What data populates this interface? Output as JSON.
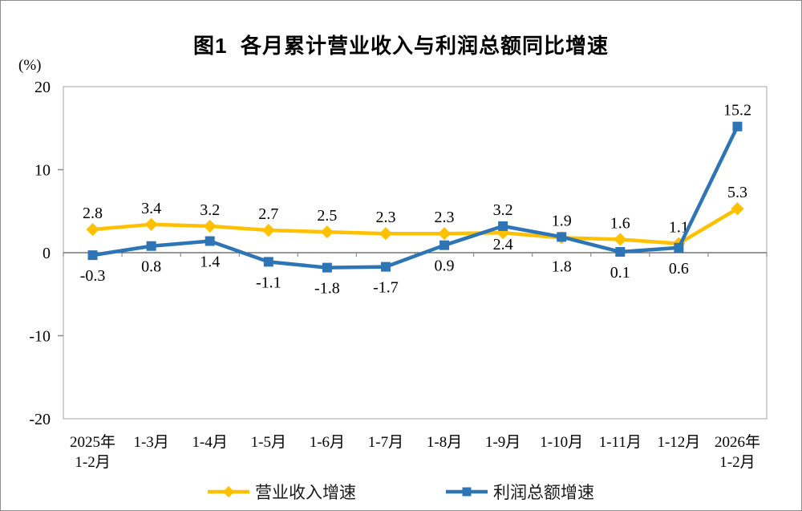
{
  "chart_data": {
    "type": "line",
    "title": "图1  各月累计营业收入与利润总额同比增速",
    "unit_label": "(%)",
    "categories": [
      "2025年\n1-2月",
      "1-3月",
      "1-4月",
      "1-5月",
      "1-6月",
      "1-7月",
      "1-8月",
      "1-9月",
      "1-10月",
      "1-11月",
      "1-12月",
      "2026年\n1-2月"
    ],
    "ylim": [
      -20,
      20
    ],
    "yticks": [
      20,
      10,
      0,
      -10,
      -20
    ],
    "grid": false,
    "legend_position": "bottom",
    "axis_color": "#a3a3a3",
    "zero_line_color": "#595959",
    "tick_color": "#8c8c8c",
    "text_color": "#000000",
    "series": [
      {
        "name": "营业收入增速",
        "color": "#FFC000",
        "marker": "diamond",
        "values": [
          2.8,
          3.4,
          3.2,
          2.7,
          2.5,
          2.3,
          2.3,
          2.4,
          1.8,
          1.6,
          1.1,
          5.3
        ],
        "label_positions": [
          "above",
          "above",
          "above",
          "above",
          "above",
          "above",
          "above",
          {
            "pos": "below",
            "dy": -11
          },
          {
            "pos": "below",
            "dy": 10
          },
          "above",
          "above",
          "above"
        ]
      },
      {
        "name": "利润总额增速",
        "color": "#2E75B6",
        "marker": "square",
        "values": [
          -0.3,
          0.8,
          1.4,
          -1.1,
          -1.8,
          -1.7,
          0.9,
          3.2,
          1.9,
          0.1,
          0.6,
          15.2
        ],
        "label_positions": [
          "below",
          "below",
          "below",
          "below",
          "below",
          "below",
          "below",
          "above",
          "above",
          "below",
          "below",
          "above"
        ]
      }
    ]
  }
}
